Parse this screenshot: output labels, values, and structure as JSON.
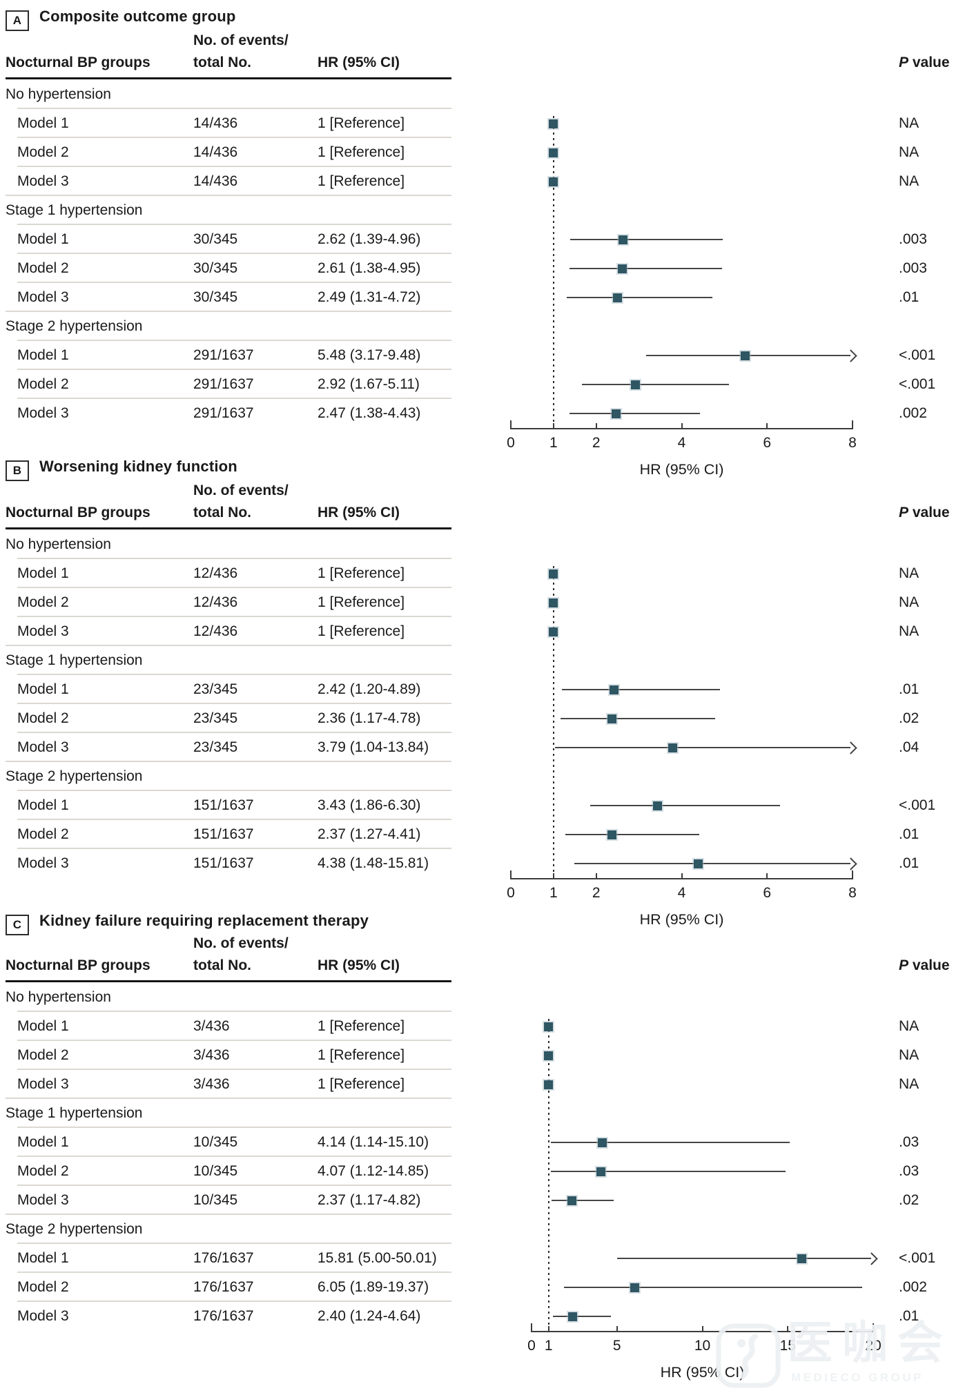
{
  "figure": {
    "columns": {
      "group": "Nocturnal BP groups",
      "events_line1": "No. of events/",
      "events_line2": "total No.",
      "hr": "HR (95% CI)",
      "p_italic": "P",
      "p_rest": " value"
    },
    "colors": {
      "marker": "#2f5663",
      "ci_line": "#454545",
      "separator": "#dbd8d1",
      "text": "#1a1a1a"
    },
    "watermark": {
      "logo": "medieco-logo",
      "cjk": "医咖会",
      "subtext": "MEDIECO GROUP"
    }
  },
  "chart_data": [
    {
      "type": "scatter",
      "variant": "forest-plot",
      "label": "A",
      "title": "Composite outcome group",
      "xlabel": "HR (95% CI)",
      "ylabel": "",
      "grid": false,
      "legend": false,
      "axis": {
        "min": 0,
        "max": 8,
        "ticks": [
          0,
          1,
          2,
          4,
          6,
          8
        ],
        "reference_line": 1
      },
      "rows": [
        {
          "kind": "group",
          "label": "No hypertension"
        },
        {
          "kind": "model",
          "label": "Model 1",
          "events": "14/436",
          "hr_label": "1 [Reference]",
          "hr": 1,
          "ci_low": null,
          "ci_high": null,
          "p": "NA"
        },
        {
          "kind": "model",
          "label": "Model 2",
          "events": "14/436",
          "hr_label": "1 [Reference]",
          "hr": 1,
          "ci_low": null,
          "ci_high": null,
          "p": "NA"
        },
        {
          "kind": "model",
          "label": "Model 3",
          "events": "14/436",
          "hr_label": "1 [Reference]",
          "hr": 1,
          "ci_low": null,
          "ci_high": null,
          "p": "NA"
        },
        {
          "kind": "group",
          "label": "Stage 1 hypertension"
        },
        {
          "kind": "model",
          "label": "Model 1",
          "events": "30/345",
          "hr_label": "2.62 (1.39-4.96)",
          "hr": 2.62,
          "ci_low": 1.39,
          "ci_high": 4.96,
          "p": ".003"
        },
        {
          "kind": "model",
          "label": "Model 2",
          "events": "30/345",
          "hr_label": "2.61 (1.38-4.95)",
          "hr": 2.61,
          "ci_low": 1.38,
          "ci_high": 4.95,
          "p": ".003"
        },
        {
          "kind": "model",
          "label": "Model 3",
          "events": "30/345",
          "hr_label": "2.49 (1.31-4.72)",
          "hr": 2.49,
          "ci_low": 1.31,
          "ci_high": 4.72,
          "p": ".01"
        },
        {
          "kind": "group",
          "label": "Stage 2 hypertension"
        },
        {
          "kind": "model",
          "label": "Model 1",
          "events": "291/1637",
          "hr_label": "5.48 (3.17-9.48)",
          "hr": 5.48,
          "ci_low": 3.17,
          "ci_high": 9.48,
          "p": "<.001"
        },
        {
          "kind": "model",
          "label": "Model 2",
          "events": "291/1637",
          "hr_label": "2.92 (1.67-5.11)",
          "hr": 2.92,
          "ci_low": 1.67,
          "ci_high": 5.11,
          "p": "<.001"
        },
        {
          "kind": "model",
          "label": "Model 3",
          "events": "291/1637",
          "hr_label": "2.47 (1.38-4.43)",
          "hr": 2.47,
          "ci_low": 1.38,
          "ci_high": 4.43,
          "p": ".002"
        }
      ]
    },
    {
      "type": "scatter",
      "variant": "forest-plot",
      "label": "B",
      "title": "Worsening kidney function",
      "xlabel": "HR (95% CI)",
      "ylabel": "",
      "grid": false,
      "legend": false,
      "axis": {
        "min": 0,
        "max": 8,
        "ticks": [
          0,
          1,
          2,
          4,
          6,
          8
        ],
        "reference_line": 1
      },
      "rows": [
        {
          "kind": "group",
          "label": "No hypertension"
        },
        {
          "kind": "model",
          "label": "Model 1",
          "events": "12/436",
          "hr_label": "1 [Reference]",
          "hr": 1,
          "ci_low": null,
          "ci_high": null,
          "p": "NA"
        },
        {
          "kind": "model",
          "label": "Model 2",
          "events": "12/436",
          "hr_label": "1 [Reference]",
          "hr": 1,
          "ci_low": null,
          "ci_high": null,
          "p": "NA"
        },
        {
          "kind": "model",
          "label": "Model 3",
          "events": "12/436",
          "hr_label": "1 [Reference]",
          "hr": 1,
          "ci_low": null,
          "ci_high": null,
          "p": "NA"
        },
        {
          "kind": "group",
          "label": "Stage 1 hypertension"
        },
        {
          "kind": "model",
          "label": "Model 1",
          "events": "23/345",
          "hr_label": "2.42 (1.20-4.89)",
          "hr": 2.42,
          "ci_low": 1.2,
          "ci_high": 4.89,
          "p": ".01"
        },
        {
          "kind": "model",
          "label": "Model 2",
          "events": "23/345",
          "hr_label": "2.36 (1.17-4.78)",
          "hr": 2.36,
          "ci_low": 1.17,
          "ci_high": 4.78,
          "p": ".02"
        },
        {
          "kind": "model",
          "label": "Model 3",
          "events": "23/345",
          "hr_label": "3.79 (1.04-13.84)",
          "hr": 3.79,
          "ci_low": 1.04,
          "ci_high": 13.84,
          "p": ".04"
        },
        {
          "kind": "group",
          "label": "Stage 2 hypertension"
        },
        {
          "kind": "model",
          "label": "Model 1",
          "events": "151/1637",
          "hr_label": "3.43 (1.86-6.30)",
          "hr": 3.43,
          "ci_low": 1.86,
          "ci_high": 6.3,
          "p": "<.001"
        },
        {
          "kind": "model",
          "label": "Model 2",
          "events": "151/1637",
          "hr_label": "2.37 (1.27-4.41)",
          "hr": 2.37,
          "ci_low": 1.27,
          "ci_high": 4.41,
          "p": ".01"
        },
        {
          "kind": "model",
          "label": "Model 3",
          "events": "151/1637",
          "hr_label": "4.38 (1.48-15.81)",
          "hr": 4.38,
          "ci_low": 1.48,
          "ci_high": 15.81,
          "p": ".01"
        }
      ]
    },
    {
      "type": "scatter",
      "variant": "forest-plot",
      "label": "C",
      "title": "Kidney failure requiring replacement therapy",
      "xlabel": "HR (95% CI)",
      "ylabel": "",
      "grid": false,
      "legend": false,
      "axis": {
        "min": 0,
        "max": 20,
        "ticks": [
          0,
          1,
          5,
          10,
          15,
          20
        ],
        "reference_line": 1
      },
      "rows": [
        {
          "kind": "group",
          "label": "No hypertension"
        },
        {
          "kind": "model",
          "label": "Model 1",
          "events": "3/436",
          "hr_label": "1 [Reference]",
          "hr": 1,
          "ci_low": null,
          "ci_high": null,
          "p": "NA"
        },
        {
          "kind": "model",
          "label": "Model 2",
          "events": "3/436",
          "hr_label": "1 [Reference]",
          "hr": 1,
          "ci_low": null,
          "ci_high": null,
          "p": "NA"
        },
        {
          "kind": "model",
          "label": "Model 3",
          "events": "3/436",
          "hr_label": "1 [Reference]",
          "hr": 1,
          "ci_low": null,
          "ci_high": null,
          "p": "NA"
        },
        {
          "kind": "group",
          "label": "Stage 1 hypertension"
        },
        {
          "kind": "model",
          "label": "Model 1",
          "events": "10/345",
          "hr_label": "4.14 (1.14-15.10)",
          "hr": 4.14,
          "ci_low": 1.14,
          "ci_high": 15.1,
          "p": ".03"
        },
        {
          "kind": "model",
          "label": "Model 2",
          "events": "10/345",
          "hr_label": "4.07 (1.12-14.85)",
          "hr": 4.07,
          "ci_low": 1.12,
          "ci_high": 14.85,
          "p": ".03"
        },
        {
          "kind": "model",
          "label": "Model 3",
          "events": "10/345",
          "hr_label": "2.37 (1.17-4.82)",
          "hr": 2.37,
          "ci_low": 1.17,
          "ci_high": 4.82,
          "p": ".02"
        },
        {
          "kind": "group",
          "label": "Stage 2 hypertension"
        },
        {
          "kind": "model",
          "label": "Model 1",
          "events": "176/1637",
          "hr_label": "15.81 (5.00-50.01)",
          "hr": 15.81,
          "ci_low": 5.0,
          "ci_high": 50.01,
          "p": "<.001"
        },
        {
          "kind": "model",
          "label": "Model 2",
          "events": "176/1637",
          "hr_label": "6.05 (1.89-19.37)",
          "hr": 6.05,
          "ci_low": 1.89,
          "ci_high": 19.37,
          "p": ".002"
        },
        {
          "kind": "model",
          "label": "Model 3",
          "events": "176/1637",
          "hr_label": "2.40 (1.24-4.64)",
          "hr": 2.4,
          "ci_low": 1.24,
          "ci_high": 4.64,
          "p": ".01"
        }
      ]
    }
  ]
}
